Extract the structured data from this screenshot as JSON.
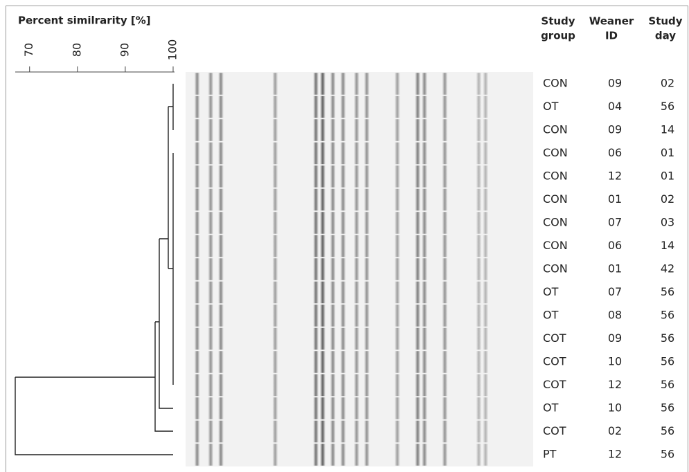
{
  "scale": {
    "title": "Percent similrarity [%]",
    "xlim": [
      67,
      100
    ],
    "xticks": [
      70,
      80,
      90,
      100
    ]
  },
  "header": {
    "group": [
      "Study",
      "group"
    ],
    "id": [
      "Weaner",
      "ID"
    ],
    "day": [
      "Study",
      "day"
    ]
  },
  "rows": [
    [
      "CON",
      "09",
      "02"
    ],
    [
      "OT",
      "04",
      "56"
    ],
    [
      "CON",
      "09",
      "14"
    ],
    [
      "CON",
      "06",
      "01"
    ],
    [
      "CON",
      "12",
      "01"
    ],
    [
      "CON",
      "01",
      "02"
    ],
    [
      "CON",
      "07",
      "03"
    ],
    [
      "CON",
      "06",
      "14"
    ],
    [
      "CON",
      "01",
      "42"
    ],
    [
      "OT",
      "07",
      "56"
    ],
    [
      "OT",
      "08",
      "56"
    ],
    [
      "COT",
      "09",
      "56"
    ],
    [
      "COT",
      "10",
      "56"
    ],
    [
      "COT",
      "12",
      "56"
    ],
    [
      "OT",
      "10",
      "56"
    ],
    [
      "COT",
      "02",
      "56"
    ],
    [
      "PT",
      "12",
      "56"
    ]
  ]
}
